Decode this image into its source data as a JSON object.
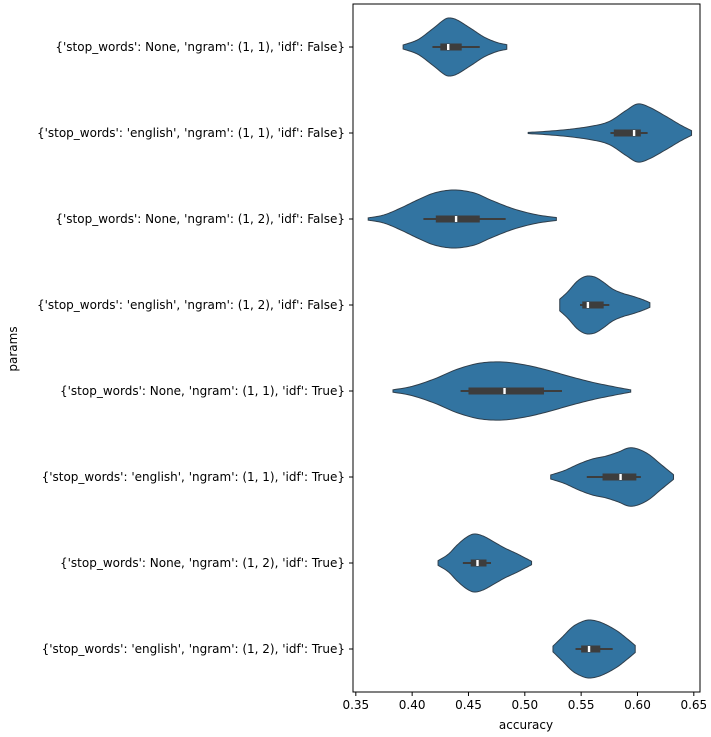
{
  "chart_data": {
    "type": "violin",
    "orientation": "horizontal",
    "xlabel": "accuracy",
    "ylabel": "params",
    "xlim": [
      0.3475,
      0.6555
    ],
    "xticks": [
      0.35,
      0.4,
      0.45,
      0.5,
      0.55,
      0.6,
      0.65
    ],
    "xtick_labels": [
      "0.35",
      "0.40",
      "0.45",
      "0.50",
      "0.55",
      "0.60",
      "0.65"
    ],
    "grid": false,
    "legend": "none",
    "colors": {
      "violin_fill": "#3274a1",
      "violin_edge": "#2f3e4b",
      "box": "#3d3d3d",
      "median": "#ffffff"
    },
    "categories": [
      "{'stop_words': None, 'ngram': (1, 1), 'idf': False}",
      "{'stop_words': 'english', 'ngram': (1, 1), 'idf': False}",
      "{'stop_words': None, 'ngram': (1, 2), 'idf': False}",
      "{'stop_words': 'english', 'ngram': (1, 2), 'idf': False}",
      "{'stop_words': None, 'ngram': (1, 1), 'idf': True}",
      "{'stop_words': 'english', 'ngram': (1, 1), 'idf': True}",
      "{'stop_words': None, 'ngram': (1, 2), 'idf': True}",
      "{'stop_words': 'english', 'ngram': (1, 2), 'idf': True}"
    ],
    "series": [
      {
        "min": 0.392,
        "max": 0.484,
        "whisker_low": 0.418,
        "q1": 0.425,
        "median": 0.432,
        "q3": 0.444,
        "whisker_high": 0.46,
        "density": [
          [
            0.392,
            0.07
          ],
          [
            0.405,
            0.25
          ],
          [
            0.418,
            0.62
          ],
          [
            0.428,
            0.93
          ],
          [
            0.433,
            1.0
          ],
          [
            0.44,
            0.93
          ],
          [
            0.452,
            0.64
          ],
          [
            0.464,
            0.34
          ],
          [
            0.475,
            0.16
          ],
          [
            0.484,
            0.08
          ]
        ]
      },
      {
        "min": 0.503,
        "max": 0.648,
        "whisker_low": 0.576,
        "q1": 0.579,
        "median": 0.597,
        "q3": 0.603,
        "whisker_high": 0.609,
        "density": [
          [
            0.503,
            0.02
          ],
          [
            0.52,
            0.06
          ],
          [
            0.54,
            0.13
          ],
          [
            0.56,
            0.24
          ],
          [
            0.575,
            0.4
          ],
          [
            0.59,
            0.78
          ],
          [
            0.6,
            1.0
          ],
          [
            0.61,
            0.9
          ],
          [
            0.625,
            0.58
          ],
          [
            0.638,
            0.28
          ],
          [
            0.648,
            0.08
          ]
        ]
      },
      {
        "min": 0.361,
        "max": 0.528,
        "whisker_low": 0.41,
        "q1": 0.421,
        "median": 0.439,
        "q3": 0.46,
        "whisker_high": 0.483,
        "density": [
          [
            0.361,
            0.04
          ],
          [
            0.375,
            0.14
          ],
          [
            0.39,
            0.38
          ],
          [
            0.405,
            0.66
          ],
          [
            0.42,
            0.9
          ],
          [
            0.437,
            1.0
          ],
          [
            0.455,
            0.9
          ],
          [
            0.47,
            0.65
          ],
          [
            0.49,
            0.35
          ],
          [
            0.51,
            0.15
          ],
          [
            0.528,
            0.05
          ]
        ]
      },
      {
        "min": 0.531,
        "max": 0.611,
        "whisker_low": 0.549,
        "q1": 0.551,
        "median": 0.556,
        "q3": 0.57,
        "whisker_high": 0.575,
        "density": [
          [
            0.531,
            0.2
          ],
          [
            0.538,
            0.45
          ],
          [
            0.546,
            0.8
          ],
          [
            0.552,
            0.96
          ],
          [
            0.557,
            1.0
          ],
          [
            0.563,
            0.95
          ],
          [
            0.57,
            0.78
          ],
          [
            0.578,
            0.55
          ],
          [
            0.587,
            0.4
          ],
          [
            0.596,
            0.3
          ],
          [
            0.605,
            0.18
          ],
          [
            0.611,
            0.08
          ]
        ]
      },
      {
        "min": 0.383,
        "max": 0.594,
        "whisker_low": 0.443,
        "q1": 0.45,
        "median": 0.482,
        "q3": 0.517,
        "whisker_high": 0.533,
        "density": [
          [
            0.383,
            0.04
          ],
          [
            0.4,
            0.16
          ],
          [
            0.42,
            0.42
          ],
          [
            0.44,
            0.75
          ],
          [
            0.46,
            0.96
          ],
          [
            0.48,
            1.0
          ],
          [
            0.5,
            0.9
          ],
          [
            0.52,
            0.72
          ],
          [
            0.54,
            0.5
          ],
          [
            0.56,
            0.3
          ],
          [
            0.58,
            0.14
          ],
          [
            0.594,
            0.04
          ]
        ]
      },
      {
        "min": 0.523,
        "max": 0.632,
        "whisker_low": 0.555,
        "q1": 0.569,
        "median": 0.585,
        "q3": 0.599,
        "whisker_high": 0.603,
        "density": [
          [
            0.523,
            0.07
          ],
          [
            0.535,
            0.22
          ],
          [
            0.548,
            0.45
          ],
          [
            0.56,
            0.62
          ],
          [
            0.572,
            0.72
          ],
          [
            0.583,
            0.86
          ],
          [
            0.592,
            1.0
          ],
          [
            0.6,
            0.97
          ],
          [
            0.61,
            0.78
          ],
          [
            0.62,
            0.46
          ],
          [
            0.632,
            0.08
          ]
        ]
      },
      {
        "min": 0.423,
        "max": 0.506,
        "whisker_low": 0.445,
        "q1": 0.452,
        "median": 0.458,
        "q3": 0.466,
        "whisker_high": 0.47,
        "density": [
          [
            0.423,
            0.08
          ],
          [
            0.432,
            0.3
          ],
          [
            0.44,
            0.62
          ],
          [
            0.448,
            0.88
          ],
          [
            0.455,
            1.0
          ],
          [
            0.463,
            0.93
          ],
          [
            0.472,
            0.74
          ],
          [
            0.482,
            0.52
          ],
          [
            0.493,
            0.32
          ],
          [
            0.5,
            0.18
          ],
          [
            0.506,
            0.06
          ]
        ]
      },
      {
        "min": 0.525,
        "max": 0.598,
        "whisker_low": 0.545,
        "q1": 0.55,
        "median": 0.557,
        "q3": 0.567,
        "whisker_high": 0.578,
        "density": [
          [
            0.525,
            0.1
          ],
          [
            0.533,
            0.4
          ],
          [
            0.542,
            0.75
          ],
          [
            0.55,
            0.93
          ],
          [
            0.557,
            1.0
          ],
          [
            0.565,
            0.95
          ],
          [
            0.573,
            0.82
          ],
          [
            0.582,
            0.62
          ],
          [
            0.59,
            0.38
          ],
          [
            0.598,
            0.12
          ]
        ]
      }
    ]
  }
}
